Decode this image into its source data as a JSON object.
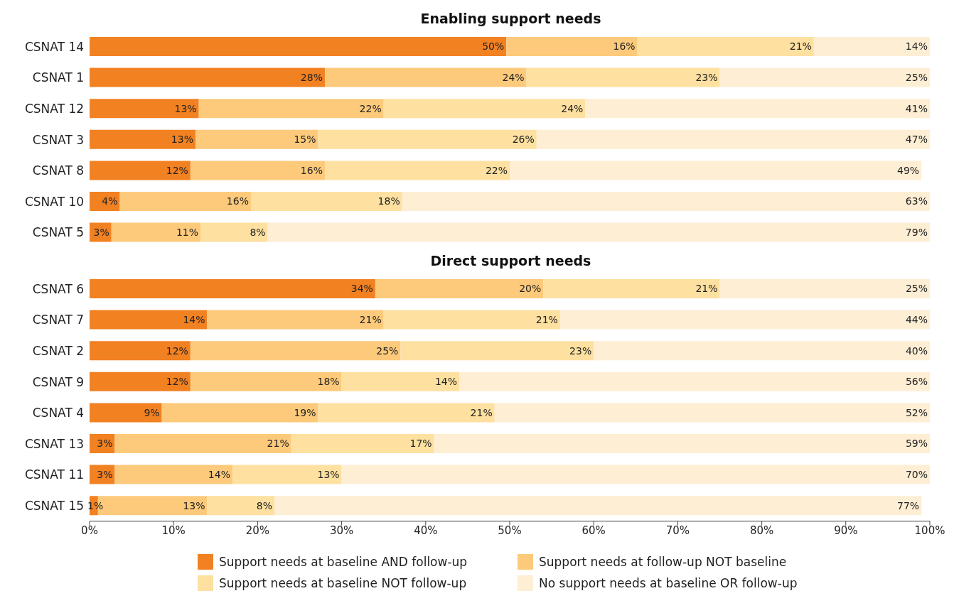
{
  "chart_data": [
    {
      "type": "bar",
      "title": "Enabling support needs",
      "orientation": "horizontal",
      "stacked": true,
      "categories": [
        "CSNAT 14",
        "CSNAT 1",
        "CSNAT 12",
        "CSNAT 3",
        "CSNAT 8",
        "CSNAT 10",
        "CSNAT 5"
      ],
      "xlim": [
        0,
        100
      ],
      "tick_labels": "y",
      "legend": false,
      "series": [
        {
          "color": "#f28122",
          "values": [
            49.6,
            28,
            13,
            12.6,
            12,
            3.6,
            2.6
          ],
          "value_labels": [
            "50%",
            "28%",
            "13%",
            "13%",
            "12%",
            "4%",
            "3%"
          ]
        },
        {
          "color": "#fdca7b",
          "values": [
            15.6,
            24,
            22,
            14.6,
            16,
            15.6,
            10.6
          ],
          "value_labels": [
            "16%",
            "24%",
            "22%",
            "15%",
            "16%",
            "16%",
            "11%"
          ]
        },
        {
          "color": "#fee0a0",
          "values": [
            21,
            23,
            24,
            26,
            22,
            18,
            8
          ],
          "value_labels": [
            "21%",
            "23%",
            "24%",
            "26%",
            "22%",
            "18%",
            "8%"
          ]
        },
        {
          "color": "#feeed4",
          "values": [
            13.8,
            25,
            41,
            46.8,
            49,
            62.8,
            78.8
          ],
          "value_labels": [
            "14%",
            "25%",
            "41%",
            "47%",
            "49%",
            "63%",
            "79%"
          ]
        }
      ]
    },
    {
      "type": "bar",
      "title": "Direct support needs",
      "orientation": "horizontal",
      "stacked": true,
      "categories": [
        "CSNAT 6",
        "CSNAT 7",
        "CSNAT 2",
        "CSNAT 9",
        "CSNAT 4",
        "CSNAT 13",
        "CSNAT 11",
        "CSNAT 15"
      ],
      "xlim": [
        0,
        100
      ],
      "xticks": [
        {
          "value": 0,
          "label": "0%"
        },
        {
          "value": 10,
          "label": "10%"
        },
        {
          "value": 20,
          "label": "20%"
        },
        {
          "value": 30,
          "label": "30%"
        },
        {
          "value": 40,
          "label": "40%"
        },
        {
          "value": 50,
          "label": "50%"
        },
        {
          "value": 60,
          "label": "60%"
        },
        {
          "value": 70,
          "label": "70%"
        },
        {
          "value": 80,
          "label": "80%"
        },
        {
          "value": 90,
          "label": "90%"
        },
        {
          "value": 100,
          "label": "100%"
        }
      ],
      "legend": "bottom",
      "series": [
        {
          "name": "Support needs at baseline AND follow-up",
          "color": "#f28122",
          "values": [
            34,
            14,
            12,
            12,
            8.6,
            3,
            3,
            1
          ],
          "value_labels": [
            "34%",
            "14%",
            "12%",
            "12%",
            "9%",
            "3%",
            "3%",
            "1%"
          ]
        },
        {
          "name": "Support needs at follow-up NOT baseline",
          "color": "#fdca7b",
          "values": [
            20,
            21,
            25,
            18,
            18.6,
            21,
            14,
            13
          ],
          "value_labels": [
            "20%",
            "21%",
            "25%",
            "18%",
            "19%",
            "21%",
            "14%",
            "13%"
          ]
        },
        {
          "name": "Support needs at baseline NOT follow-up",
          "color": "#fee0a0",
          "values": [
            21,
            21,
            23,
            14,
            21,
            17,
            13,
            8
          ],
          "value_labels": [
            "21%",
            "21%",
            "23%",
            "14%",
            "21%",
            "17%",
            "13%",
            "8%"
          ]
        },
        {
          "name": "No support needs at baseline OR follow-up",
          "color": "#feeed4",
          "values": [
            25,
            44,
            40,
            56,
            51.8,
            59,
            70,
            77
          ],
          "value_labels": [
            "25%",
            "44%",
            "40%",
            "56%",
            "52%",
            "59%",
            "70%",
            "77%"
          ]
        }
      ]
    }
  ]
}
